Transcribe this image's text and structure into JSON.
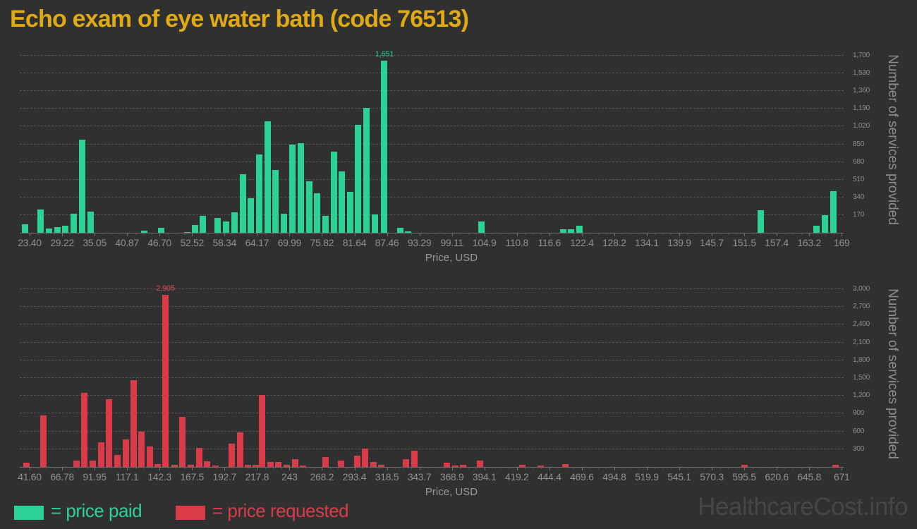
{
  "title": "Echo exam of eye water bath (code 76513)",
  "watermark": "HealthcareCost.info",
  "legend": {
    "paid": {
      "label": "= price paid",
      "color": "#2cd295"
    },
    "requested": {
      "label": "= price requested",
      "color": "#da3b49"
    }
  },
  "chart_data": [
    {
      "id": "top",
      "type": "bar",
      "series_name": "price paid",
      "series_class": "paid",
      "color": "#2cd295",
      "xlabel": "Price, USD",
      "ylabel": "Number of services provided",
      "grid": true,
      "x_tick_labels": [
        "23.40",
        "29.22",
        "35.05",
        "40.87",
        "46.70",
        "52.52",
        "58.34",
        "64.17",
        "69.99",
        "75.82",
        "81.64",
        "87.46",
        "93.29",
        "99.11",
        "104.9",
        "110.8",
        "116.6",
        "122.4",
        "128.2",
        "134.1",
        "139.9",
        "145.7",
        "151.5",
        "157.4",
        "163.2",
        "169"
      ],
      "x_tick_start": 23.4,
      "x_tick_step": 5.8228,
      "y_tick_labels": [
        "170",
        "340",
        "510",
        "680",
        "850",
        "1,020",
        "1,190",
        "1,360",
        "1,530",
        "1,700"
      ],
      "y_tick_step": 170,
      "ylim": [
        0,
        1788
      ],
      "peak_label": "1,651",
      "points": [
        [
          22.6,
          80
        ],
        [
          25.4,
          225
        ],
        [
          26.9,
          40
        ],
        [
          28.4,
          55
        ],
        [
          29.8,
          70
        ],
        [
          31.3,
          185
        ],
        [
          32.8,
          895
        ],
        [
          34.3,
          200
        ],
        [
          43.9,
          20
        ],
        [
          47.0,
          50
        ],
        [
          51.6,
          10
        ],
        [
          53.1,
          75
        ],
        [
          54.5,
          165
        ],
        [
          57.1,
          140
        ],
        [
          58.6,
          110
        ],
        [
          60.1,
          195
        ],
        [
          61.6,
          560
        ],
        [
          63.1,
          335
        ],
        [
          64.6,
          755
        ],
        [
          66.1,
          1070
        ],
        [
          67.5,
          605
        ],
        [
          69.0,
          185
        ],
        [
          70.5,
          850
        ],
        [
          72.0,
          860
        ],
        [
          73.5,
          495
        ],
        [
          74.9,
          380
        ],
        [
          76.4,
          165
        ],
        [
          77.9,
          780
        ],
        [
          79.4,
          590
        ],
        [
          80.9,
          395
        ],
        [
          82.3,
          1035
        ],
        [
          83.8,
          1200
        ],
        [
          85.3,
          175
        ],
        [
          87.0,
          1651
        ],
        [
          89.8,
          50
        ],
        [
          91.2,
          15
        ],
        [
          104.4,
          110
        ],
        [
          119.0,
          35
        ],
        [
          120.5,
          35
        ],
        [
          122.0,
          70
        ],
        [
          154.4,
          220
        ],
        [
          164.5,
          70
        ],
        [
          166.0,
          170
        ],
        [
          167.5,
          400
        ]
      ]
    },
    {
      "id": "bottom",
      "type": "bar",
      "series_name": "price requested",
      "series_class": "requested",
      "color": "#da3b49",
      "xlabel": "Price, USD",
      "ylabel": "Number of services provided",
      "grid": true,
      "x_tick_labels": [
        "41.60",
        "66.78",
        "91.95",
        "117.1",
        "142.3",
        "167.5",
        "192.7",
        "217.8",
        "243",
        "268.2",
        "293.4",
        "318.5",
        "343.7",
        "368.9",
        "394.1",
        "419.2",
        "444.4",
        "469.6",
        "494.8",
        "519.9",
        "545.1",
        "570.3",
        "595.5",
        "620.6",
        "645.8",
        "671"
      ],
      "x_tick_start": 41.6,
      "x_tick_step": 25.176,
      "y_tick_labels": [
        "300",
        "600",
        "900",
        "1,200",
        "1,500",
        "1,800",
        "2,100",
        "2,400",
        "2,700",
        "3,000"
      ],
      "y_tick_step": 300,
      "ylim": [
        0,
        3143
      ],
      "peak_label": "2,905",
      "points": [
        [
          39.3,
          70
        ],
        [
          52.3,
          870
        ],
        [
          77.8,
          110
        ],
        [
          84.1,
          1250
        ],
        [
          90.5,
          110
        ],
        [
          96.9,
          420
        ],
        [
          103.2,
          1140
        ],
        [
          109.6,
          200
        ],
        [
          116.0,
          460
        ],
        [
          122.3,
          1460
        ],
        [
          128.2,
          590
        ],
        [
          134.6,
          350
        ],
        [
          141.0,
          50
        ],
        [
          146.9,
          2905
        ],
        [
          153.8,
          35
        ],
        [
          160.1,
          850
        ],
        [
          166.5,
          35
        ],
        [
          173.0,
          320
        ],
        [
          179.3,
          100
        ],
        [
          185.5,
          20
        ],
        [
          198.4,
          390
        ],
        [
          204.6,
          580
        ],
        [
          210.9,
          35
        ],
        [
          216.7,
          30
        ],
        [
          221.9,
          1210
        ],
        [
          228.1,
          80
        ],
        [
          234.5,
          80
        ],
        [
          240.9,
          30
        ],
        [
          247.3,
          130
        ],
        [
          253.2,
          20
        ],
        [
          270.8,
          170
        ],
        [
          283.2,
          110
        ],
        [
          295.5,
          190
        ],
        [
          301.8,
          310
        ],
        [
          308.2,
          80
        ],
        [
          314.4,
          30
        ],
        [
          333.3,
          130
        ],
        [
          339.7,
          270
        ],
        [
          365.2,
          70
        ],
        [
          371.6,
          20
        ],
        [
          377.8,
          40
        ],
        [
          390.8,
          110
        ],
        [
          423.7,
          40
        ],
        [
          437.6,
          20
        ],
        [
          456.8,
          50
        ],
        [
          595.5,
          40
        ],
        [
          666.3,
          40
        ]
      ]
    }
  ]
}
